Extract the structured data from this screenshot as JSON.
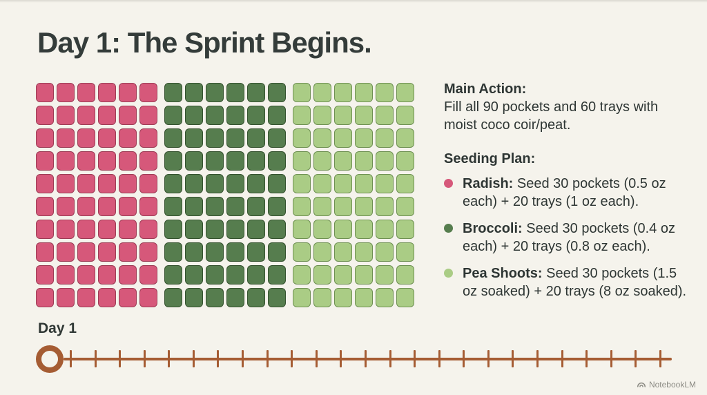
{
  "title": "Day 1: The Sprint Begins.",
  "colors": {
    "background": "#f5f3ec",
    "text": "#2e3634",
    "timeline": "#a55c33",
    "watermark": "#8d8c85"
  },
  "chart_data": {
    "type": "waffle",
    "title": "Seeding allocation grid",
    "rows": 10,
    "columns": 18,
    "cols_per_group": 6,
    "total_squares": 180,
    "legend_position": "right-panel",
    "series": [
      {
        "name": "Radish",
        "squares": 60,
        "pockets": 30,
        "pocket_oz": 0.5,
        "trays": 20,
        "tray_oz": 1,
        "fill": "#d6587a",
        "border": "#9c3c55"
      },
      {
        "name": "Broccoli",
        "squares": 60,
        "pockets": 30,
        "pocket_oz": 0.4,
        "trays": 20,
        "tray_oz": 0.8,
        "fill": "#567d4e",
        "border": "#35522f"
      },
      {
        "name": "Pea Shoots",
        "squares": 60,
        "pockets": 30,
        "pocket_oz": 1.5,
        "trays": 20,
        "tray_oz": 8,
        "fill": "#aacc85",
        "border": "#6e9052"
      }
    ]
  },
  "panel": {
    "main_action_label": "Main Action:",
    "main_action_text": "Fill all 90 pockets and 60 trays with moist coco coir/peat.",
    "seeding_plan_label": "Seeding Plan:",
    "items": [
      {
        "name": "Radish:",
        "text": "Seed 30 pockets (0.5 oz each) + 20 trays (1 oz each).",
        "dot_color": "#d6587a"
      },
      {
        "name": "Broccoli:",
        "text": "Seed 30 pockets (0.4 oz each) + 20 trays (0.8 oz each).",
        "dot_color": "#567d4e"
      },
      {
        "name": "Pea Shoots:",
        "text": "Seed 30 pockets (1.5 oz soaked) + 20 trays (8 oz soaked).",
        "dot_color": "#aacc85"
      }
    ]
  },
  "timeline": {
    "label": "Day 1",
    "tick_count": 25
  },
  "watermark": {
    "text": "NotebookLM"
  }
}
